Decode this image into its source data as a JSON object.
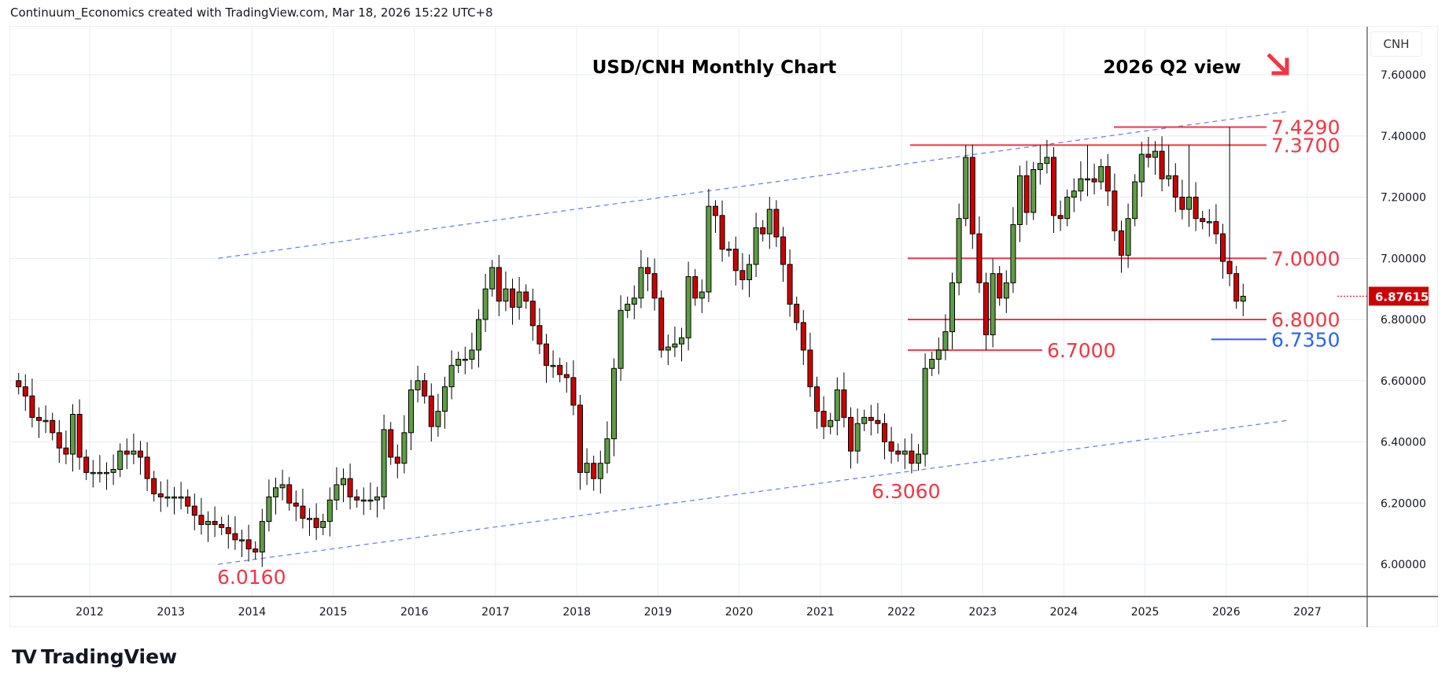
{
  "header": {
    "credit": "Continuum_Economics created with TradingView.com, Mar 18, 2026 15:22 UTC+8"
  },
  "branding": {
    "logo_text": "TradingView",
    "logo_mark": "TV"
  },
  "colors": {
    "up": "#5f9c46",
    "down": "#cc0000",
    "level_red": "#f23645",
    "level_blue": "#2962ff",
    "channel": "#5b7ff5",
    "grid": "#e6eef5"
  },
  "chart_data": {
    "type": "candlestick",
    "title": "USD/CNH Monthly Chart",
    "subtitle": "2026 Q2 view",
    "view_icon": "arrow-down-right-icon",
    "currency_label": "CNH",
    "last_price": "6.87615",
    "ylim": [
      5.93,
      7.72
    ],
    "y_ticks": [
      "6.00000",
      "6.20000",
      "6.40000",
      "6.60000",
      "6.80000",
      "7.00000",
      "7.20000",
      "7.40000",
      "7.60000"
    ],
    "x_ticks": [
      "2012",
      "2013",
      "2014",
      "2015",
      "2016",
      "2017",
      "2018",
      "2019",
      "2020",
      "2021",
      "2022",
      "2023",
      "2024",
      "2025",
      "2026",
      "2027"
    ],
    "start_month": "2011-02",
    "first_open": 6.6,
    "closes": [
      6.58,
      6.55,
      6.48,
      6.47,
      6.47,
      6.43,
      6.38,
      6.36,
      6.49,
      6.35,
      6.3,
      6.3,
      6.3,
      6.3,
      6.31,
      6.37,
      6.36,
      6.37,
      6.35,
      6.28,
      6.23,
      6.22,
      6.22,
      6.22,
      6.22,
      6.19,
      6.16,
      6.13,
      6.14,
      6.13,
      6.12,
      6.1,
      6.08,
      6.08,
      6.05,
      6.04,
      6.14,
      6.22,
      6.25,
      6.26,
      6.2,
      6.19,
      6.15,
      6.15,
      6.12,
      6.14,
      6.21,
      6.26,
      6.28,
      6.22,
      6.21,
      6.21,
      6.21,
      6.22,
      6.44,
      6.35,
      6.33,
      6.43,
      6.57,
      6.6,
      6.55,
      6.45,
      6.5,
      6.58,
      6.65,
      6.67,
      6.67,
      6.7,
      6.8,
      6.9,
      6.97,
      6.86,
      6.9,
      6.84,
      6.89,
      6.86,
      6.78,
      6.72,
      6.65,
      6.65,
      6.62,
      6.61,
      6.52,
      6.3,
      6.33,
      6.28,
      6.33,
      6.41,
      6.64,
      6.83,
      6.85,
      6.87,
      6.97,
      6.95,
      6.87,
      6.7,
      6.71,
      6.72,
      6.74,
      6.94,
      6.87,
      6.89,
      7.17,
      7.14,
      7.03,
      7.03,
      6.96,
      6.93,
      6.98,
      7.1,
      7.08,
      7.16,
      7.07,
      6.98,
      6.85,
      6.79,
      6.7,
      6.58,
      6.5,
      6.45,
      6.47,
      6.57,
      6.48,
      6.37,
      6.46,
      6.48,
      6.47,
      6.46,
      6.4,
      6.37,
      6.36,
      6.37,
      6.33,
      6.36,
      6.64,
      6.67,
      6.7,
      6.76,
      6.92,
      7.13,
      7.33,
      7.08,
      6.92,
      6.75,
      6.95,
      6.87,
      6.92,
      7.11,
      7.27,
      7.15,
      7.29,
      7.31,
      7.33,
      7.14,
      7.13,
      7.2,
      7.22,
      7.26,
      7.26,
      7.25,
      7.3,
      7.22,
      7.09,
      7.01,
      7.13,
      7.25,
      7.34,
      7.33,
      7.35,
      7.26,
      7.27,
      7.2,
      7.16,
      7.2,
      7.13,
      7.12,
      7.12,
      7.08,
      6.99,
      6.95,
      6.86,
      6.876
    ],
    "overrides": {
      "35": {
        "l": 6.016
      },
      "85": {
        "l": 6.24
      },
      "103": {
        "h": 7.19
      },
      "112": {
        "h": 7.19
      },
      "133": {
        "l": 6.306
      },
      "140": {
        "h": 7.37
      },
      "143": {
        "l": 6.7
      },
      "151": {
        "h": 7.37
      },
      "158": {
        "h": 7.37
      },
      "170": {
        "h": 7.37
      },
      "173": {
        "h": 7.37
      },
      "170.5": {},
      "179": {
        "h": 7.429
      }
    },
    "levels": [
      {
        "label": "7.4290",
        "value": 7.429,
        "color": "red"
      },
      {
        "label": "7.3700",
        "value": 7.37,
        "color": "red"
      },
      {
        "label": "7.0000",
        "value": 7.0,
        "color": "red"
      },
      {
        "label": "6.8000",
        "value": 6.8,
        "color": "red"
      },
      {
        "label": "6.7350",
        "value": 6.735,
        "color": "blue"
      },
      {
        "label": "6.7000",
        "value": 6.7,
        "color": "red"
      }
    ],
    "annotations": [
      {
        "label": "6.3060",
        "value": 6.306,
        "date": "2022-02"
      },
      {
        "label": "6.0160",
        "value": 6.016,
        "date": "2014-01"
      }
    ],
    "channel": {
      "upper": [
        [
          "2013-08",
          7.0
        ],
        [
          "2026-10",
          7.48
        ]
      ],
      "lower": [
        [
          "2013-08",
          6.0
        ],
        [
          "2026-10",
          6.47
        ]
      ]
    }
  }
}
